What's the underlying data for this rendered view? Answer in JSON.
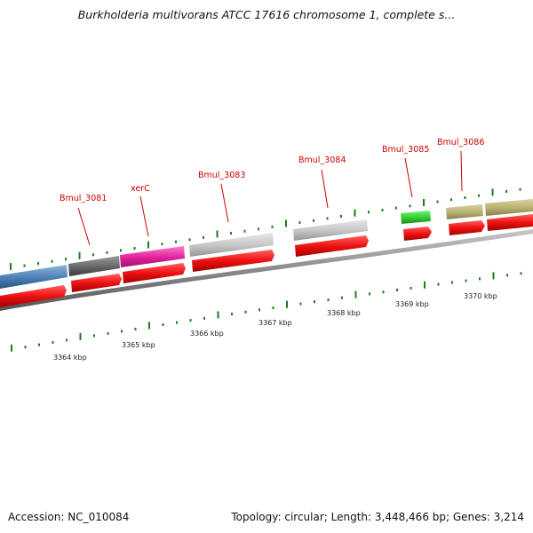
{
  "title": "Burkholderia multivorans ATCC 17616 chromosome 1, complete s...",
  "accession_label": "Accession: NC_010084",
  "summary_label": "Topology: circular; Length: 3,448,466 bp; Genes: 3,214",
  "gene_labels": [
    "Bmul_3081",
    "xerC",
    "Bmul_3083",
    "Bmul_3084",
    "Bmul_3085",
    "Bmul_3086"
  ],
  "scale_labels": [
    "3364 kbp",
    "3365 kbp",
    "3366 kbp",
    "3367 kbp",
    "3368 kbp",
    "3369 kbp",
    "3370 kbp"
  ],
  "colors": {
    "strand_arrow": "#ee1111",
    "backbone": "#8a8a8a",
    "tick": "#1f7a1f",
    "label": "#cc0000",
    "blue_gene": "#4a7fb5",
    "dark_gray_gene": "#6a6a6a",
    "magenta_gene": "#e0209a",
    "light_gray_gene": "#c4c4c4",
    "green_gene": "#2ecc2e",
    "khaki_gene": "#b8b070"
  }
}
